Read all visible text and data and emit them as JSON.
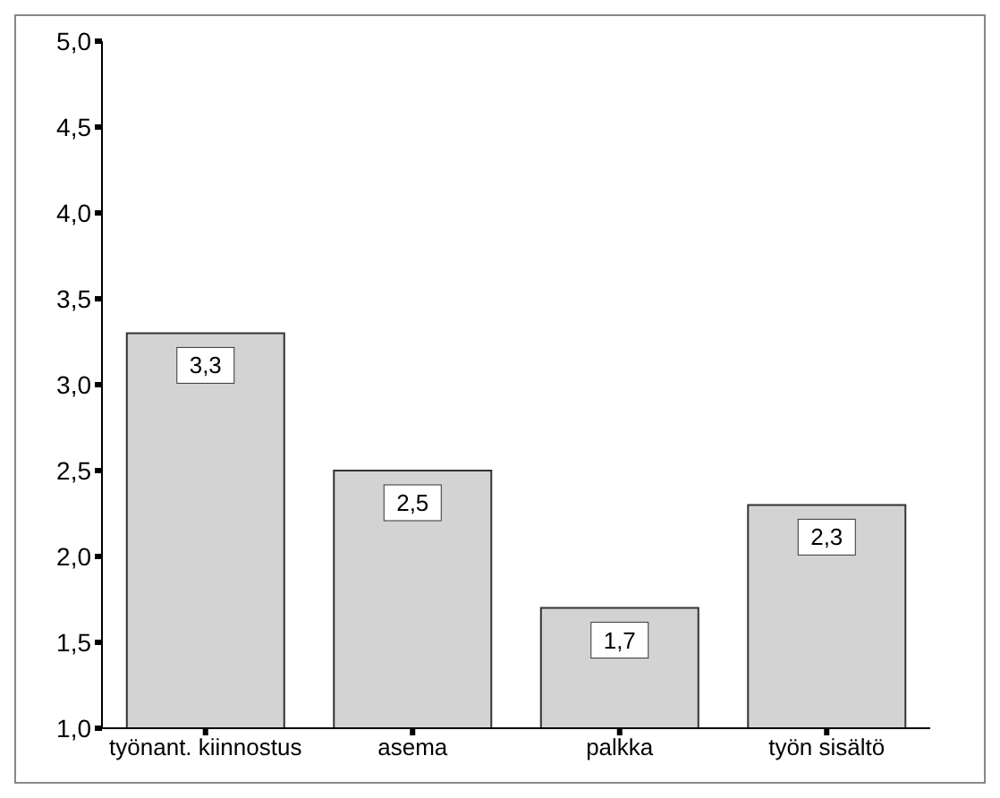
{
  "chart_data": {
    "type": "bar",
    "categories": [
      "työnant. kiinnostus",
      "asema",
      "palkka",
      "työn sisältö"
    ],
    "values": [
      3.3,
      2.5,
      1.7,
      2.3
    ],
    "value_labels": [
      "3,3",
      "2,5",
      "1,7",
      "2,3"
    ],
    "color": "#d3d3d3",
    "ylim": [
      1,
      5
    ],
    "yticks": [
      {
        "value": 1,
        "label": "1,0"
      },
      {
        "value": 1.5,
        "label": "1,5"
      },
      {
        "value": 2,
        "label": "2,0"
      },
      {
        "value": 2.5,
        "label": "2,5"
      },
      {
        "value": 3,
        "label": "3,0"
      },
      {
        "value": 3.5,
        "label": "3,5"
      },
      {
        "value": 4,
        "label": "4,0"
      },
      {
        "value": 4.5,
        "label": "4,5"
      },
      {
        "value": 5,
        "label": "5,0"
      }
    ],
    "grid": false,
    "legend": false
  }
}
